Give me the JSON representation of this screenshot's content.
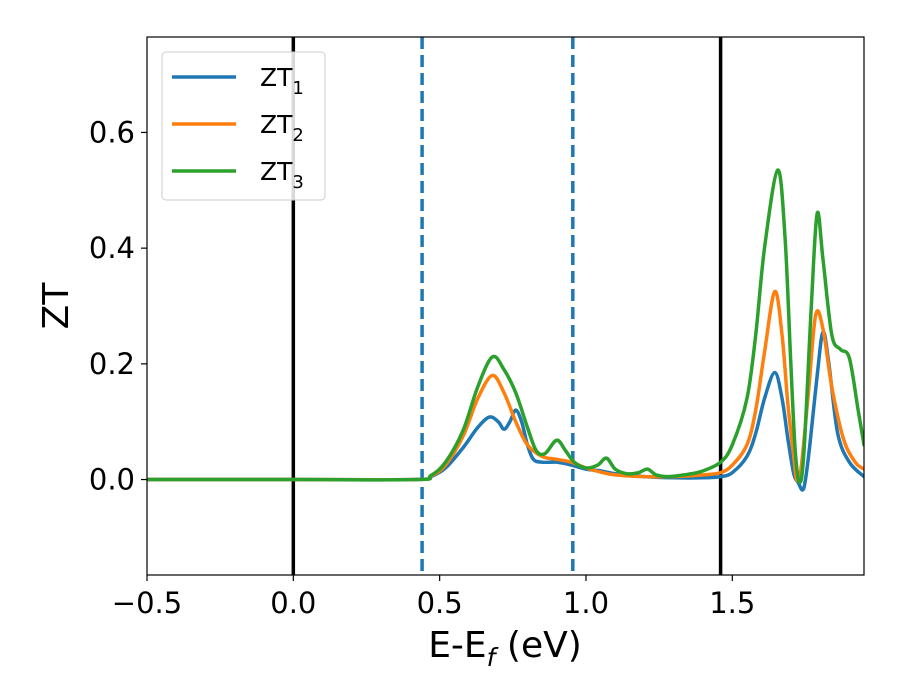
{
  "chart_data": {
    "type": "line",
    "title": "",
    "xlabel": "E-E",
    "xlabel_sub": "f",
    "xlabel_unit": " (eV)",
    "ylabel": "ZT",
    "xlim": [
      -0.5,
      1.95
    ],
    "ylim": [
      -0.165,
      0.765
    ],
    "xticks": [
      -0.5,
      0.0,
      0.5,
      1.0,
      1.5
    ],
    "xtick_labels": [
      "−0.5",
      "0.0",
      "0.5",
      "1.0",
      "1.5"
    ],
    "yticks": [
      0.0,
      0.2,
      0.4,
      0.6
    ],
    "ytick_labels": [
      "0.0",
      "0.2",
      "0.4",
      "0.6"
    ],
    "grid": false,
    "legend_position": "top-left",
    "vlines": [
      {
        "x": 0.0,
        "style": "solid",
        "color": "#000000"
      },
      {
        "x": 0.44,
        "style": "dashed",
        "color": "#1f77b4"
      },
      {
        "x": 0.955,
        "style": "dashed",
        "color": "#1f77b4"
      },
      {
        "x": 1.46,
        "style": "solid",
        "color": "#000000"
      }
    ],
    "series": [
      {
        "name": "ZT",
        "name_sub": "1",
        "color": "#1f77b4",
        "points": [
          [
            -0.5,
            0.0
          ],
          [
            0.0,
            0.0
          ],
          [
            0.42,
            0.0
          ],
          [
            0.47,
            0.005
          ],
          [
            0.52,
            0.02
          ],
          [
            0.58,
            0.055
          ],
          [
            0.63,
            0.09
          ],
          [
            0.67,
            0.108
          ],
          [
            0.7,
            0.1
          ],
          [
            0.72,
            0.087
          ],
          [
            0.74,
            0.1
          ],
          [
            0.76,
            0.12
          ],
          [
            0.78,
            0.1
          ],
          [
            0.8,
            0.06
          ],
          [
            0.82,
            0.035
          ],
          [
            0.85,
            0.03
          ],
          [
            0.9,
            0.03
          ],
          [
            0.95,
            0.025
          ],
          [
            1.0,
            0.018
          ],
          [
            1.05,
            0.015
          ],
          [
            1.1,
            0.01
          ],
          [
            1.2,
            0.005
          ],
          [
            1.3,
            0.003
          ],
          [
            1.4,
            0.003
          ],
          [
            1.46,
            0.005
          ],
          [
            1.5,
            0.012
          ],
          [
            1.55,
            0.04
          ],
          [
            1.58,
            0.08
          ],
          [
            1.61,
            0.14
          ],
          [
            1.645,
            0.185
          ],
          [
            1.67,
            0.14
          ],
          [
            1.69,
            0.07
          ],
          [
            1.71,
            0.01
          ],
          [
            1.725,
            -0.005
          ],
          [
            1.74,
            -0.018
          ],
          [
            1.75,
            0.0
          ],
          [
            1.765,
            0.06
          ],
          [
            1.79,
            0.18
          ],
          [
            1.81,
            0.255
          ],
          [
            1.83,
            0.2
          ],
          [
            1.86,
            0.08
          ],
          [
            1.9,
            0.03
          ],
          [
            1.95,
            0.005
          ]
        ]
      },
      {
        "name": "ZT",
        "name_sub": "2",
        "color": "#ff7f0e",
        "points": [
          [
            -0.5,
            0.0
          ],
          [
            0.0,
            0.0
          ],
          [
            0.42,
            0.0
          ],
          [
            0.47,
            0.006
          ],
          [
            0.52,
            0.025
          ],
          [
            0.58,
            0.075
          ],
          [
            0.63,
            0.14
          ],
          [
            0.68,
            0.18
          ],
          [
            0.72,
            0.15
          ],
          [
            0.76,
            0.1
          ],
          [
            0.8,
            0.06
          ],
          [
            0.85,
            0.04
          ],
          [
            0.9,
            0.035
          ],
          [
            0.95,
            0.03
          ],
          [
            1.0,
            0.02
          ],
          [
            1.05,
            0.013
          ],
          [
            1.1,
            0.008
          ],
          [
            1.2,
            0.005
          ],
          [
            1.3,
            0.005
          ],
          [
            1.4,
            0.008
          ],
          [
            1.46,
            0.012
          ],
          [
            1.5,
            0.025
          ],
          [
            1.55,
            0.06
          ],
          [
            1.58,
            0.12
          ],
          [
            1.61,
            0.22
          ],
          [
            1.645,
            0.325
          ],
          [
            1.67,
            0.25
          ],
          [
            1.69,
            0.13
          ],
          [
            1.71,
            0.04
          ],
          [
            1.72,
            0.0
          ],
          [
            1.735,
            0.02
          ],
          [
            1.76,
            0.15
          ],
          [
            1.785,
            0.285
          ],
          [
            1.81,
            0.26
          ],
          [
            1.84,
            0.16
          ],
          [
            1.88,
            0.07
          ],
          [
            1.92,
            0.03
          ],
          [
            1.95,
            0.018
          ]
        ]
      },
      {
        "name": "ZT",
        "name_sub": "3",
        "color": "#2ca02c",
        "points": [
          [
            -0.5,
            0.0
          ],
          [
            0.0,
            0.0
          ],
          [
            0.42,
            0.0
          ],
          [
            0.47,
            0.007
          ],
          [
            0.52,
            0.03
          ],
          [
            0.58,
            0.085
          ],
          [
            0.63,
            0.16
          ],
          [
            0.68,
            0.212
          ],
          [
            0.72,
            0.19
          ],
          [
            0.76,
            0.15
          ],
          [
            0.8,
            0.09
          ],
          [
            0.83,
            0.05
          ],
          [
            0.86,
            0.045
          ],
          [
            0.9,
            0.068
          ],
          [
            0.93,
            0.05
          ],
          [
            0.96,
            0.03
          ],
          [
            1.0,
            0.02
          ],
          [
            1.04,
            0.025
          ],
          [
            1.07,
            0.037
          ],
          [
            1.1,
            0.018
          ],
          [
            1.14,
            0.01
          ],
          [
            1.18,
            0.012
          ],
          [
            1.21,
            0.018
          ],
          [
            1.24,
            0.008
          ],
          [
            1.28,
            0.005
          ],
          [
            1.32,
            0.007
          ],
          [
            1.36,
            0.01
          ],
          [
            1.4,
            0.015
          ],
          [
            1.46,
            0.03
          ],
          [
            1.5,
            0.06
          ],
          [
            1.55,
            0.14
          ],
          [
            1.58,
            0.25
          ],
          [
            1.61,
            0.4
          ],
          [
            1.655,
            0.535
          ],
          [
            1.68,
            0.42
          ],
          [
            1.7,
            0.2
          ],
          [
            1.715,
            0.05
          ],
          [
            1.73,
            -0.005
          ],
          [
            1.745,
            0.05
          ],
          [
            1.77,
            0.3
          ],
          [
            1.79,
            0.46
          ],
          [
            1.81,
            0.38
          ],
          [
            1.84,
            0.25
          ],
          [
            1.87,
            0.225
          ],
          [
            1.9,
            0.21
          ],
          [
            1.93,
            0.12
          ],
          [
            1.95,
            0.06
          ]
        ]
      }
    ]
  }
}
